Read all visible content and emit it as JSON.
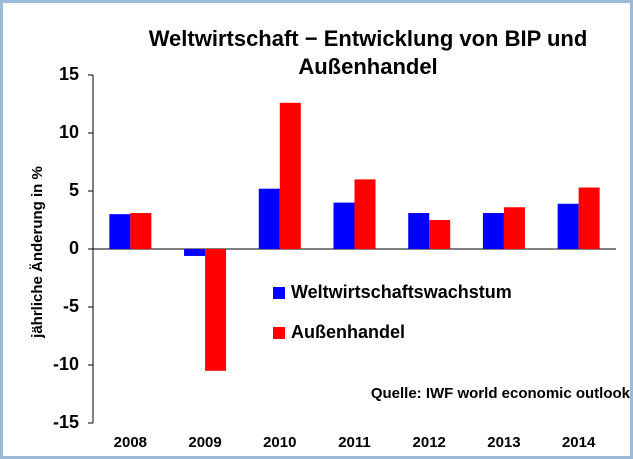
{
  "chart_data": {
    "type": "bar",
    "title": "Weltwirtschaft − Entwicklung von BIP und Außenhandel",
    "y_label": "jährliche Änderung in %",
    "annotation": "Quelle: IWF world economic outlook",
    "categories": [
      "2008",
      "2009",
      "2010",
      "2011",
      "2012",
      "2013",
      "2014"
    ],
    "series": [
      {
        "name": "Weltwirtschaftswachstum",
        "color": "#0000ff",
        "values": [
          3.0,
          -0.6,
          5.2,
          4.0,
          3.1,
          3.1,
          3.9
        ]
      },
      {
        "name": "Außenhandel",
        "color": "#ff0000",
        "values": [
          3.1,
          -10.5,
          12.6,
          6.0,
          2.5,
          3.6,
          5.3
        ]
      }
    ],
    "ylim": [
      -15,
      15
    ],
    "yticks": [
      15,
      10,
      5,
      0,
      -5,
      -10,
      -15
    ],
    "grid": false
  }
}
